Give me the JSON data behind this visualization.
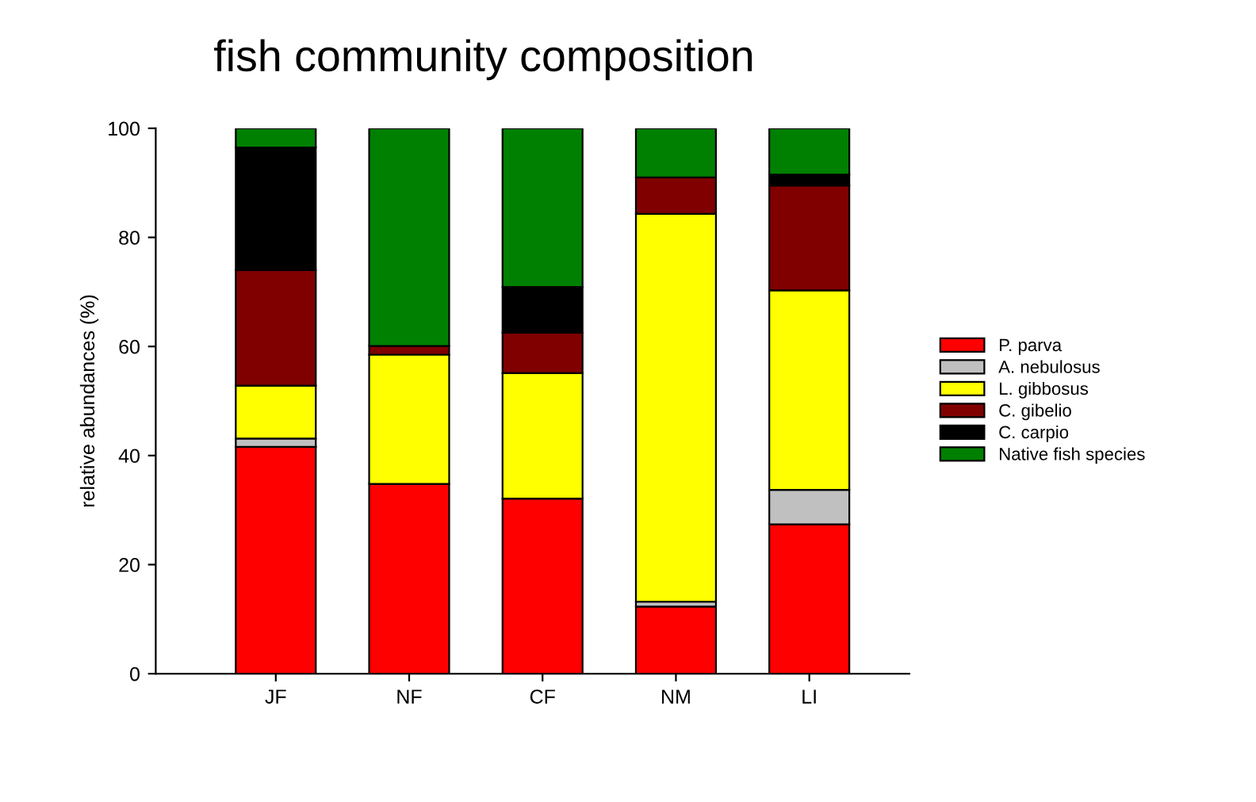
{
  "chart_data": {
    "type": "bar",
    "title": "fish community composition",
    "ylabel": "relative abundances (%)",
    "categories": [
      "JF",
      "NF",
      "CF",
      "NM",
      "LI"
    ],
    "stacked": true,
    "ylim": [
      0,
      100
    ],
    "yticks": [
      0,
      20,
      40,
      60,
      80,
      100
    ],
    "grid": false,
    "legend": "right",
    "series": [
      {
        "name": "P. parva",
        "color": "#ff0000",
        "values": [
          41.6,
          34.8,
          32.1,
          12.3,
          27.4
        ]
      },
      {
        "name": "A. nebulosus",
        "color": "#c0c0c0",
        "values": [
          1.5,
          0,
          0,
          0.9,
          6.3
        ]
      },
      {
        "name": "L. gibbosus",
        "color": "#ffff00",
        "values": [
          9.7,
          23.7,
          23.0,
          71.1,
          36.6
        ]
      },
      {
        "name": "C. gibelio",
        "color": "#800000",
        "values": [
          21.2,
          1.6,
          7.4,
          6.7,
          19.2
        ]
      },
      {
        "name": "C. carpio",
        "color": "#000000",
        "values": [
          22.5,
          0,
          8.4,
          0,
          2.0
        ]
      },
      {
        "name": "Native fish species",
        "color": "#008000",
        "values": [
          3.5,
          39.9,
          29.1,
          9.0,
          8.5
        ]
      }
    ]
  }
}
